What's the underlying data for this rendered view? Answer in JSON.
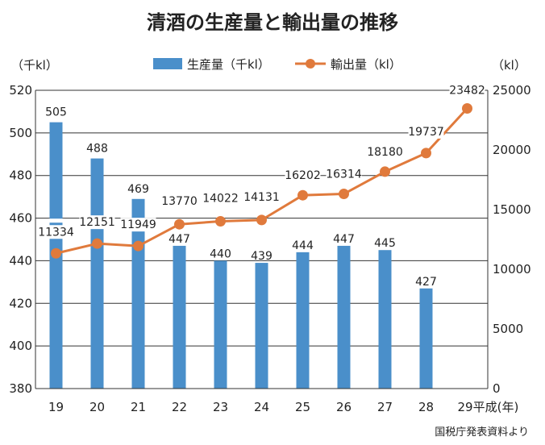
{
  "chart_data": {
    "type": "bar+line",
    "title": "清酒の生産量と輸出量の推移",
    "categories": [
      "19",
      "20",
      "21",
      "22",
      "23",
      "24",
      "25",
      "26",
      "27",
      "28",
      "29平成(年)"
    ],
    "series": [
      {
        "name": "生産量（千kl）",
        "type": "bar",
        "axis": "left",
        "values": [
          505,
          488,
          469,
          447,
          440,
          439,
          444,
          447,
          445,
          427,
          null
        ],
        "color": "#4a8fca"
      },
      {
        "name": "輸出量（kl）",
        "type": "line",
        "axis": "right",
        "values": [
          11334,
          12151,
          11949,
          13770,
          14022,
          14131,
          16202,
          16314,
          18180,
          19737,
          23482
        ],
        "color": "#e07a3c"
      }
    ],
    "left_axis": {
      "unit": "（千kl）",
      "ylim": [
        380,
        520
      ],
      "ticks": [
        380,
        400,
        420,
        440,
        460,
        480,
        500,
        520
      ],
      "axis_break": true
    },
    "right_axis": {
      "unit": "（kl）",
      "ylim": [
        0,
        25000
      ],
      "ticks": [
        0,
        5000,
        10000,
        15000,
        20000,
        25000
      ]
    },
    "grid": true,
    "legend": "top-center",
    "source": "国税庁発表資料より"
  }
}
